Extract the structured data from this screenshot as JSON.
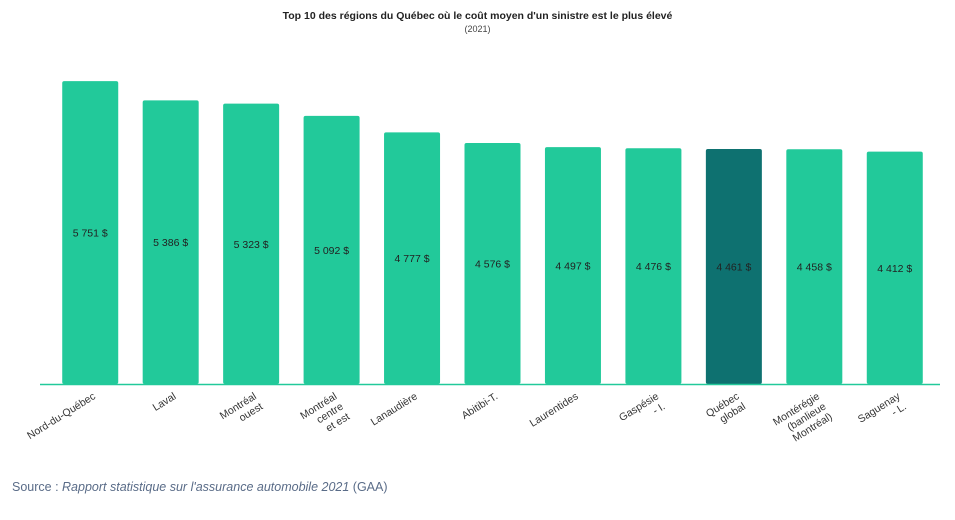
{
  "chart_data": {
    "type": "bar",
    "title": "Top 10 des régions du Québec où le coût moyen d'un sinistre est le plus élevé",
    "subtitle": "(2021)",
    "xlabel": "",
    "ylabel": "",
    "ylim": [
      0,
      6000
    ],
    "grid": false,
    "legend": "none",
    "categories": [
      "Nord-du-Québec",
      "Laval",
      "Montréal ouest",
      "Montréal centre et est",
      "Lanaudière",
      "Abitibi-T.",
      "Laurentides",
      "Gaspésie - I.",
      "Québec global",
      "Montérégie (banlieue Montréal)",
      "Saguenay - L."
    ],
    "category_lines": [
      [
        "Nord-du-Québec"
      ],
      [
        "Laval"
      ],
      [
        "Montréal",
        "ouest"
      ],
      [
        "Montréal",
        "centre",
        "et est"
      ],
      [
        "Lanaudière"
      ],
      [
        "Abitibi-T."
      ],
      [
        "Laurentides"
      ],
      [
        "Gaspésie",
        "- I."
      ],
      [
        "Québec",
        "global"
      ],
      [
        "Montérégie",
        "(banlieue",
        "Montréal)"
      ],
      [
        "Saguenay",
        "- L."
      ]
    ],
    "values": [
      5751,
      5386,
      5323,
      5092,
      4777,
      4576,
      4497,
      4476,
      4461,
      4458,
      4412
    ],
    "value_labels": [
      "5 751 $",
      "5 386 $",
      "5 323 $",
      "5 092 $",
      "4 777 $",
      "4 576 $",
      "4 497 $",
      "4 476 $",
      "4 461 $",
      "4 458 $",
      "4 412 $"
    ],
    "highlight_index": 8,
    "colors": {
      "bar": "#22c99a",
      "highlight": "#0e7170",
      "axis": "#22c99a",
      "value_text": "#222222",
      "tick_text": "#333333"
    }
  },
  "source": {
    "prefix": "Source : ",
    "title": "Rapport statistique sur l'assurance automobile 2021",
    "suffix": " (GAA)"
  }
}
